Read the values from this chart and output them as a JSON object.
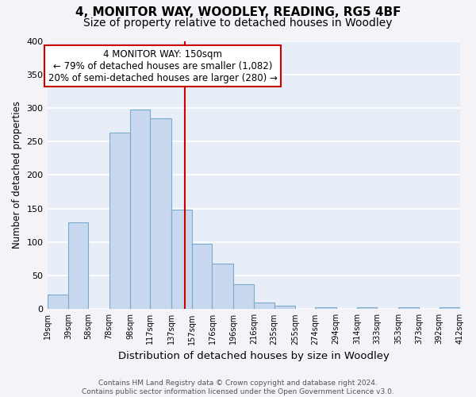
{
  "title": "4, MONITOR WAY, WOODLEY, READING, RG5 4BF",
  "subtitle": "Size of property relative to detached houses in Woodley",
  "xlabel": "Distribution of detached houses by size in Woodley",
  "ylabel": "Number of detached properties",
  "bar_color": "#c8d8ee",
  "bar_edge_color": "#7aaaca",
  "plot_bg_color": "#e8eef8",
  "fig_bg_color": "#f4f4f8",
  "grid_color": "#ffffff",
  "bin_edges": [
    19,
    39,
    58,
    78,
    98,
    117,
    137,
    157,
    176,
    196,
    216,
    235,
    255,
    274,
    294,
    314,
    333,
    353,
    373,
    392,
    412
  ],
  "bar_heights": [
    22,
    130,
    0,
    263,
    298,
    285,
    148,
    98,
    68,
    37,
    10,
    5,
    0,
    3,
    0,
    3,
    0,
    3,
    0,
    3
  ],
  "tick_labels": [
    "19sqm",
    "39sqm",
    "58sqm",
    "78sqm",
    "98sqm",
    "117sqm",
    "137sqm",
    "157sqm",
    "176sqm",
    "196sqm",
    "216sqm",
    "235sqm",
    "255sqm",
    "274sqm",
    "294sqm",
    "314sqm",
    "333sqm",
    "353sqm",
    "373sqm",
    "392sqm",
    "412sqm"
  ],
  "vline_x": 150,
  "vline_color": "#cc0000",
  "ann_line1": "4 MONITOR WAY: 150sqm",
  "ann_line2": "← 79% of detached houses are smaller (1,082)",
  "ann_line3": "20% of semi-detached houses are larger (280) →",
  "ann_box_edge_color": "#cc0000",
  "ann_box_face_color": "#ffffff",
  "ylim": [
    0,
    400
  ],
  "yticks": [
    0,
    50,
    100,
    150,
    200,
    250,
    300,
    350,
    400
  ],
  "xlim_left": 19,
  "xlim_right": 412,
  "title_fontsize": 11,
  "subtitle_fontsize": 10,
  "xlabel_fontsize": 9.5,
  "ylabel_fontsize": 8.5,
  "tick_fontsize": 7,
  "ann_fontsize": 8.5,
  "footer_fontsize": 6.5,
  "footer_text": "Contains HM Land Registry data © Crown copyright and database right 2024.\nContains public sector information licensed under the Open Government Licence v3.0."
}
